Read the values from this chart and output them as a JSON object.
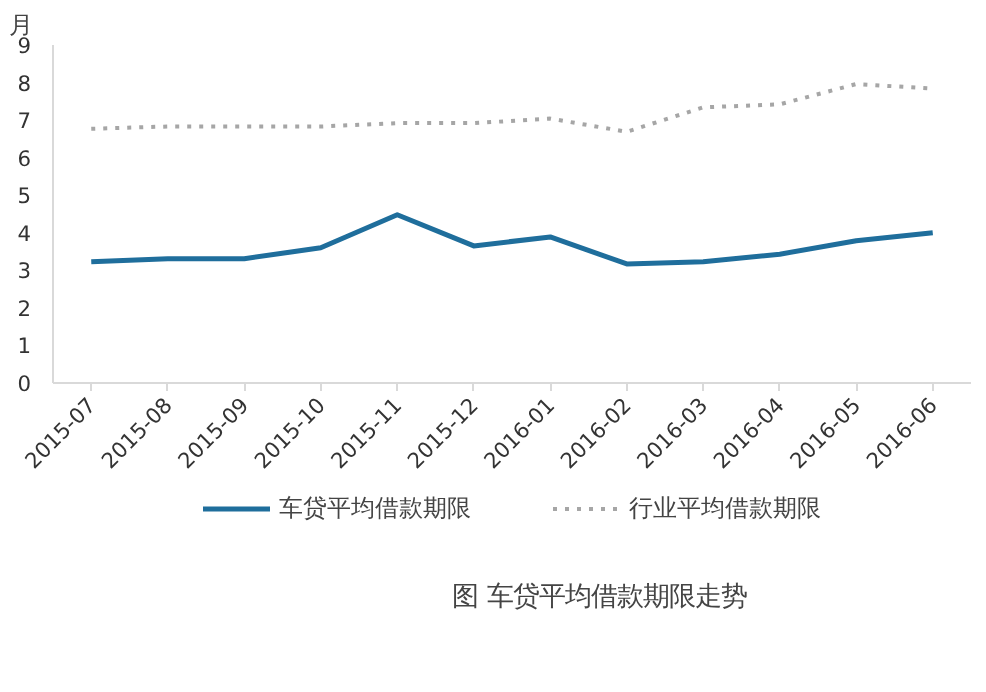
{
  "chart_data": {
    "type": "line",
    "title": "图  车贷平均借款期限走势",
    "ylabel": "月",
    "categories": [
      "2015-07",
      "2015-08",
      "2015-09",
      "2015-10",
      "2015-11",
      "2015-12",
      "2016-01",
      "2016-02",
      "2016-03",
      "2016-04",
      "2016-05",
      "2016-06"
    ],
    "series": [
      {
        "name": "车贷平均借款期限",
        "color": "#1f6e9c",
        "line_style": "solid",
        "values": [
          3.23,
          3.31,
          3.31,
          3.6,
          4.48,
          3.65,
          3.89,
          3.17,
          3.23,
          3.43,
          3.79,
          4.0
        ]
      },
      {
        "name": "行业平均借款期限",
        "color": "#a6a6a6",
        "line_style": "dotted",
        "values": [
          6.77,
          6.83,
          6.83,
          6.83,
          6.92,
          6.92,
          7.04,
          6.69,
          7.34,
          7.42,
          7.96,
          7.84
        ]
      }
    ],
    "ylim": [
      0,
      9
    ],
    "yticks": [
      0,
      1,
      2,
      3,
      4,
      5,
      6,
      7,
      8,
      9
    ],
    "grid": false,
    "legend": "bottom",
    "marker": "none"
  }
}
